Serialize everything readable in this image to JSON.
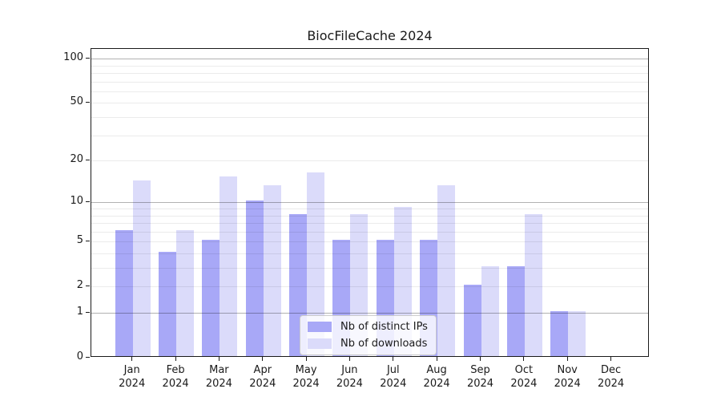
{
  "title": "BiocFileCache 2024",
  "year_label": "2024",
  "months": [
    "Jan",
    "Feb",
    "Mar",
    "Apr",
    "May",
    "Jun",
    "Jul",
    "Aug",
    "Sep",
    "Oct",
    "Nov",
    "Dec"
  ],
  "y_tick_labels": [
    "0",
    "1",
    "2",
    "5",
    "10",
    "20",
    "50",
    "100"
  ],
  "legend": {
    "items": [
      {
        "label": "Nb of distinct IPs",
        "color": "#a8a8f7"
      },
      {
        "label": "Nb of downloads",
        "color": "#dbdbfa"
      }
    ]
  },
  "colors": {
    "ip_bar": "#a8a8f7",
    "dl_bar": "#dbdbfa",
    "spine": "#1a1a1a"
  },
  "chart_data": {
    "type": "bar",
    "title": "BiocFileCache 2024",
    "categories": [
      "Jan 2024",
      "Feb 2024",
      "Mar 2024",
      "Apr 2024",
      "May 2024",
      "Jun 2024",
      "Jul 2024",
      "Aug 2024",
      "Sep 2024",
      "Oct 2024",
      "Nov 2024",
      "Dec 2024"
    ],
    "series": [
      {
        "name": "Nb of distinct IPs",
        "color": "#a8a8f7",
        "values": [
          6,
          4,
          5,
          10,
          8,
          5,
          5,
          5,
          2,
          3,
          1,
          0
        ]
      },
      {
        "name": "Nb of downloads",
        "color": "#dbdbfa",
        "values": [
          14,
          6,
          15,
          13,
          16,
          8,
          9,
          13,
          3,
          8,
          1,
          0
        ]
      }
    ],
    "yscale": "log1p",
    "yticks": [
      0,
      1,
      2,
      5,
      10,
      20,
      50,
      100
    ],
    "major_grid_values": [
      1,
      10,
      100
    ],
    "light_grid_values": [
      2,
      5,
      20,
      50
    ],
    "minor_grid_values": [
      3,
      4,
      6,
      7,
      8,
      9,
      30,
      40,
      60,
      70,
      80,
      90
    ],
    "ylim": [
      0,
      117
    ],
    "grid": true,
    "legend_position": "lower center",
    "xlabel": "",
    "ylabel": ""
  }
}
